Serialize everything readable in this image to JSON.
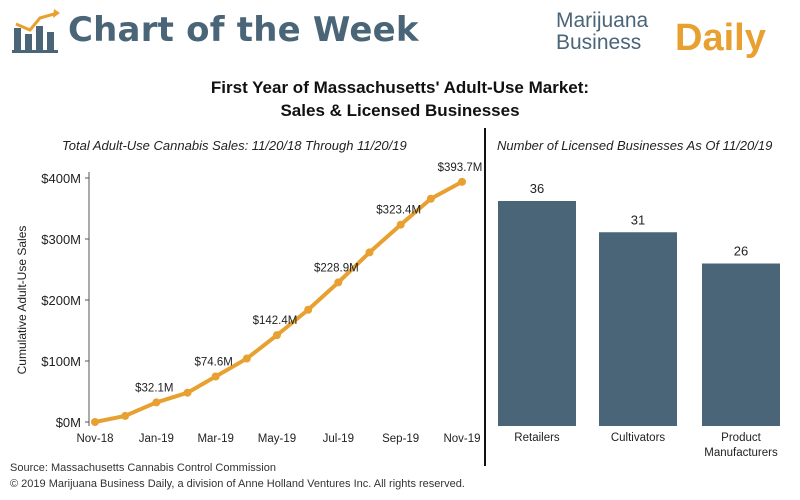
{
  "header": {
    "banner_title": "Chart of the Week",
    "brand_line1": "Marijuana",
    "brand_line2": "Business",
    "brand_line3": "Daily",
    "main_title_line1": "First Year of Massachusetts' Adult-Use Market:",
    "main_title_line2": "Sales & Licensed Businesses"
  },
  "colors": {
    "banner": "#4a6577",
    "line": "#e8a030",
    "bar": "#4a6577"
  },
  "chart_data": [
    {
      "type": "line",
      "title": "Total Adult-Use Cannabis Sales: 11/20/18 Through 11/20/19",
      "ylabel": "Cumulative Adult-Use Sales",
      "xlabel": "",
      "x": [
        "2018-11-20",
        "2018-12-20",
        "2019-01-20",
        "2019-02-20",
        "2019-03-20",
        "2019-04-20",
        "2019-05-20",
        "2019-06-20",
        "2019-07-20",
        "2019-08-20",
        "2019-09-20",
        "2019-10-20",
        "2019-11-20"
      ],
      "x_ticks": [
        {
          "date": "2018-11-20",
          "label": "Nov-18"
        },
        {
          "date": "2019-01-20",
          "label": "Jan-19"
        },
        {
          "date": "2019-03-20",
          "label": "Mar-19"
        },
        {
          "date": "2019-05-20",
          "label": "May-19"
        },
        {
          "date": "2019-07-20",
          "label": "Jul-19"
        },
        {
          "date": "2019-09-20",
          "label": "Sep-19"
        },
        {
          "date": "2019-11-20",
          "label": "Nov-19"
        }
      ],
      "y": [
        0,
        10,
        32.1,
        48,
        74.6,
        104,
        142.4,
        184,
        228.9,
        278,
        323.4,
        366,
        393.7
      ],
      "data_labels": [
        {
          "index": 2,
          "text": "$32.1M"
        },
        {
          "index": 4,
          "text": "$74.6M"
        },
        {
          "index": 6,
          "text": "$142.4M"
        },
        {
          "index": 8,
          "text": "$228.9M"
        },
        {
          "index": 10,
          "text": "$323.4M"
        },
        {
          "index": 12,
          "text": "$393.7M"
        }
      ],
      "y_ticks": [
        {
          "value": 0,
          "label": "$0M"
        },
        {
          "value": 100,
          "label": "$100M"
        },
        {
          "value": 200,
          "label": "$200M"
        },
        {
          "value": 300,
          "label": "$300M"
        },
        {
          "value": 400,
          "label": "$400M"
        }
      ],
      "ylim": [
        0,
        400
      ],
      "grid": false
    },
    {
      "type": "bar",
      "title": "Number of Licensed Businesses As Of 11/20/19",
      "categories": [
        [
          "Retailers"
        ],
        [
          "Cultivators"
        ],
        [
          "Product",
          "Manufacturers"
        ]
      ],
      "values": [
        36,
        31,
        26
      ],
      "ylim": [
        0,
        40
      ],
      "grid": false
    }
  ],
  "footer": {
    "source": "Source: Massachusetts Cannabis Control Commission",
    "copyright": "© 2019 Marijuana Business Daily, a division of Anne Holland Ventures Inc. All rights reserved."
  }
}
